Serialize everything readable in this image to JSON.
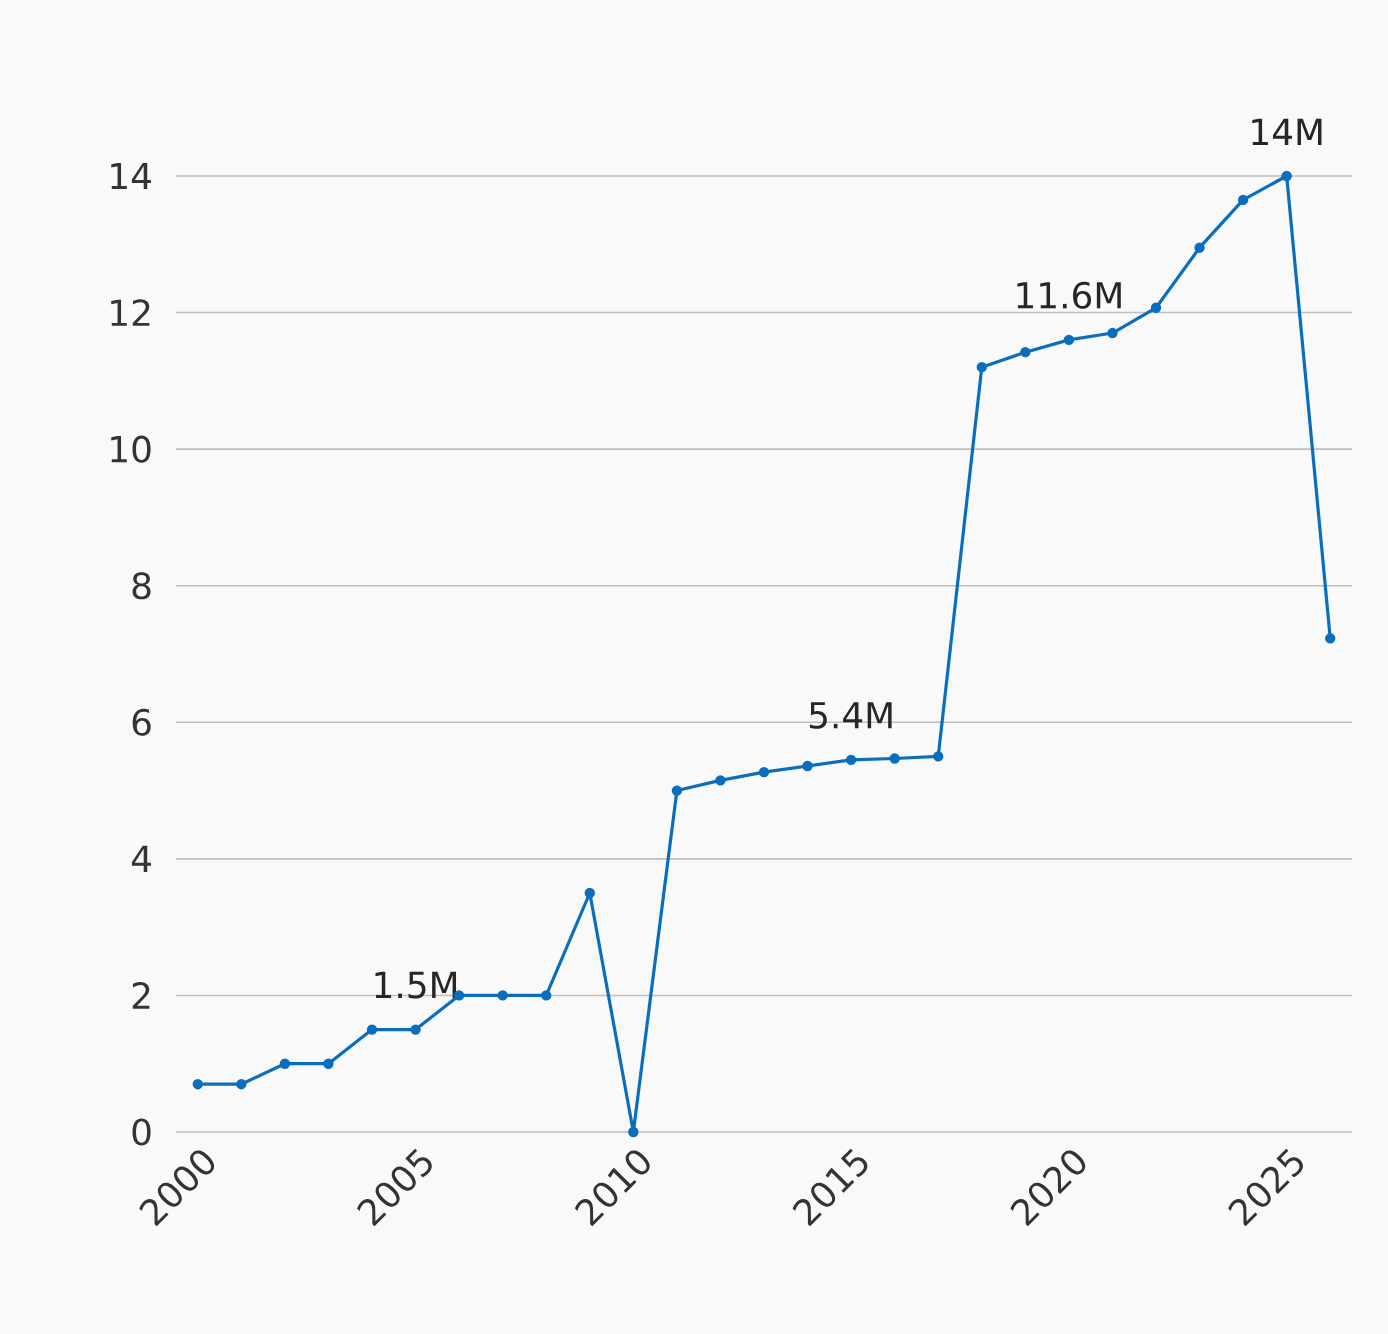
{
  "chart_data": {
    "type": "line",
    "x": [
      2000,
      2001,
      2002,
      2003,
      2004,
      2005,
      2006,
      2007,
      2008,
      2009,
      2010,
      2011,
      2012,
      2013,
      2014,
      2015,
      2016,
      2017,
      2018,
      2019,
      2020,
      2021,
      2022,
      2023,
      2024,
      2025,
      2026
    ],
    "series": [
      {
        "color": "#0a6ebd",
        "values": [
          0.7,
          0.7,
          1.0,
          1.0,
          1.5,
          1.5,
          2.0,
          2.0,
          2.0,
          3.5,
          0,
          5.0,
          5.15,
          5.27,
          5.36,
          5.45,
          5.47,
          5.5,
          11.2,
          11.42,
          11.6,
          11.7,
          12.07,
          12.95,
          13.65,
          14.0,
          7.23
        ]
      }
    ],
    "xlim": [
      1999.5,
      2026.5
    ],
    "ylim": [
      0,
      14
    ],
    "xticks": [
      2000,
      2005,
      2010,
      2015,
      2020,
      2025
    ],
    "yticks": [
      0,
      2,
      4,
      6,
      8,
      10,
      12,
      14
    ],
    "grid": "y",
    "marker": "circle",
    "line_style": "solid",
    "annotations": [
      {
        "text": "1.5M",
        "x": 2005,
        "y": 1.5
      },
      {
        "text": "5.4M",
        "x": 2015,
        "y": 5.45
      },
      {
        "text": "11.6M",
        "x": 2020,
        "y": 11.6
      },
      {
        "text": "14M",
        "x": 2025,
        "y": 14.0
      }
    ]
  }
}
